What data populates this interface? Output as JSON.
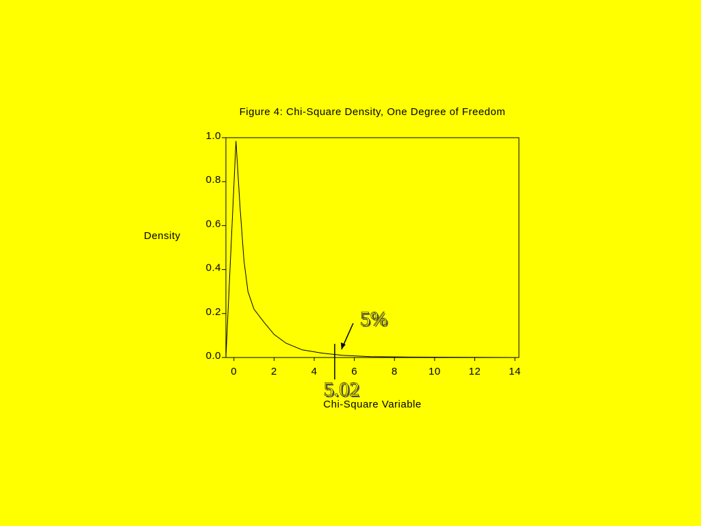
{
  "chart_data": {
    "type": "line",
    "title": "Figure 4: Chi-Square Density, One Degree of Freedom",
    "ylabel": "Density",
    "xlabel": "Chi-Square Variable",
    "x": [
      -0.4,
      0.1,
      0.3,
      0.5,
      0.7,
      1.0,
      1.5,
      2.0,
      2.6,
      3.4,
      4.4,
      5.4,
      6.8,
      8.8,
      12.2,
      14.2
    ],
    "values": [
      0,
      0.985,
      0.69,
      0.44,
      0.3,
      0.22,
      0.16,
      0.105,
      0.065,
      0.035,
      0.02,
      0.01,
      0.004,
      0.002,
      0.001,
      0
    ],
    "color": "#000000",
    "xlim": [
      -0.4,
      14.2
    ],
    "ylim": [
      0,
      1
    ],
    "xticks": [
      0,
      2,
      4,
      6,
      8,
      10,
      12,
      14
    ],
    "yticks": [
      {
        "value": 0,
        "label": "0.0"
      },
      0.2,
      0.4,
      0.6,
      0.8,
      {
        "value": 1,
        "label": "1.0"
      }
    ],
    "critical_value": 5.02,
    "tail_area": {
      "value": 5,
      "label": "5%"
    }
  }
}
